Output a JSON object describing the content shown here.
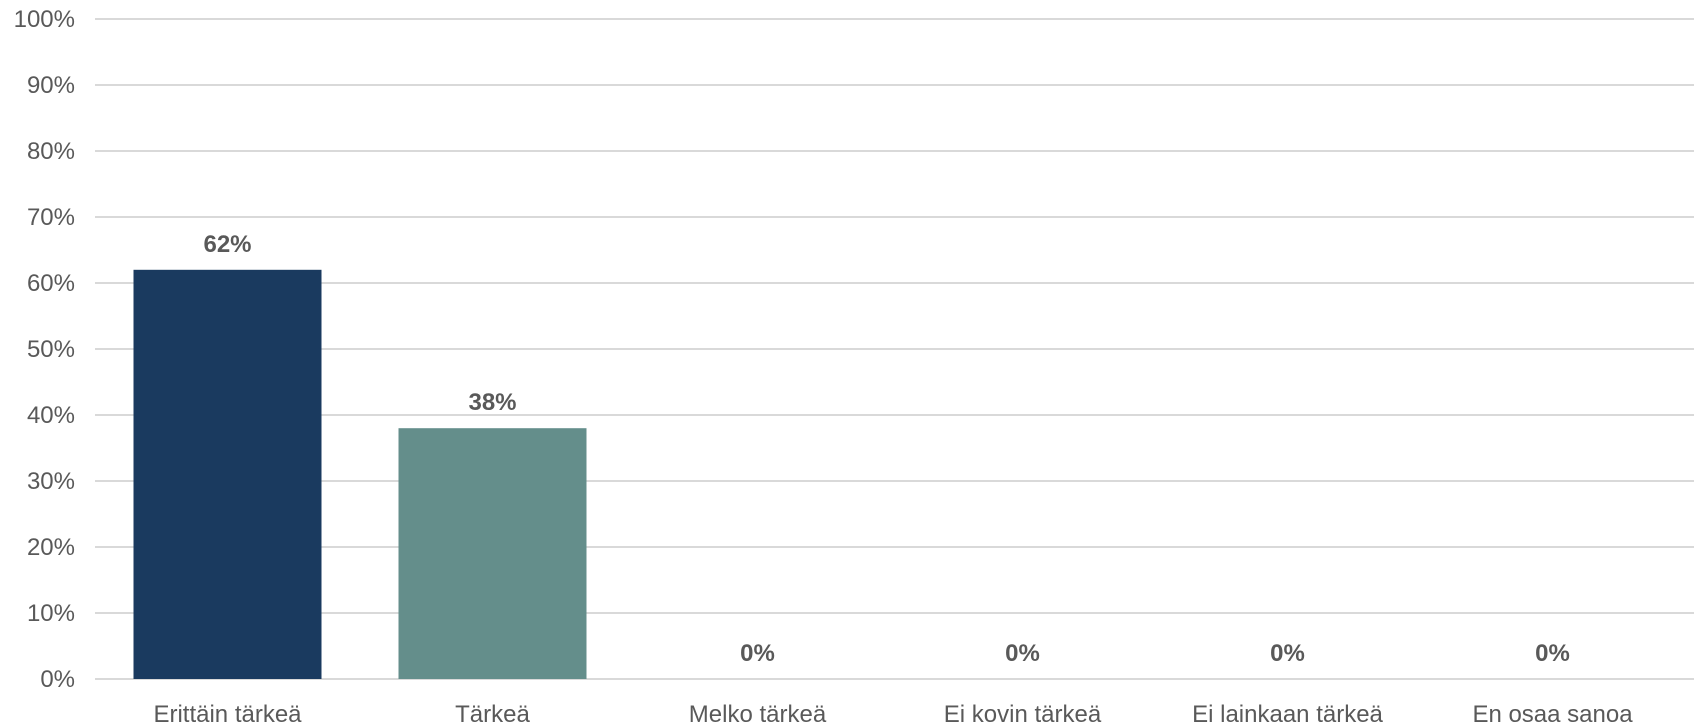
{
  "chart_data": {
    "type": "bar",
    "title": "",
    "xlabel": "",
    "ylabel": "",
    "categories": [
      "Erittäin tärkeä",
      "Tärkeä",
      "Melko tärkeä",
      "Ei kovin tärkeä",
      "Ei lainkaan tärkeä",
      "En osaa sanoa"
    ],
    "values": [
      62,
      38,
      0,
      0,
      0,
      0
    ],
    "data_labels": [
      "62%",
      "38%",
      "0%",
      "0%",
      "0%",
      "0%"
    ],
    "bar_colors": [
      "#1a3a5f",
      "#648e8b",
      "#648e8b",
      "#648e8b",
      "#648e8b",
      "#648e8b"
    ],
    "ylim": [
      0,
      100
    ],
    "yticks": [
      0,
      10,
      20,
      30,
      40,
      50,
      60,
      70,
      80,
      90,
      100
    ],
    "ytick_labels": [
      "0%",
      "10%",
      "20%",
      "30%",
      "40%",
      "50%",
      "60%",
      "70%",
      "80%",
      "90%",
      "100%"
    ],
    "grid": true,
    "legend": "none"
  }
}
